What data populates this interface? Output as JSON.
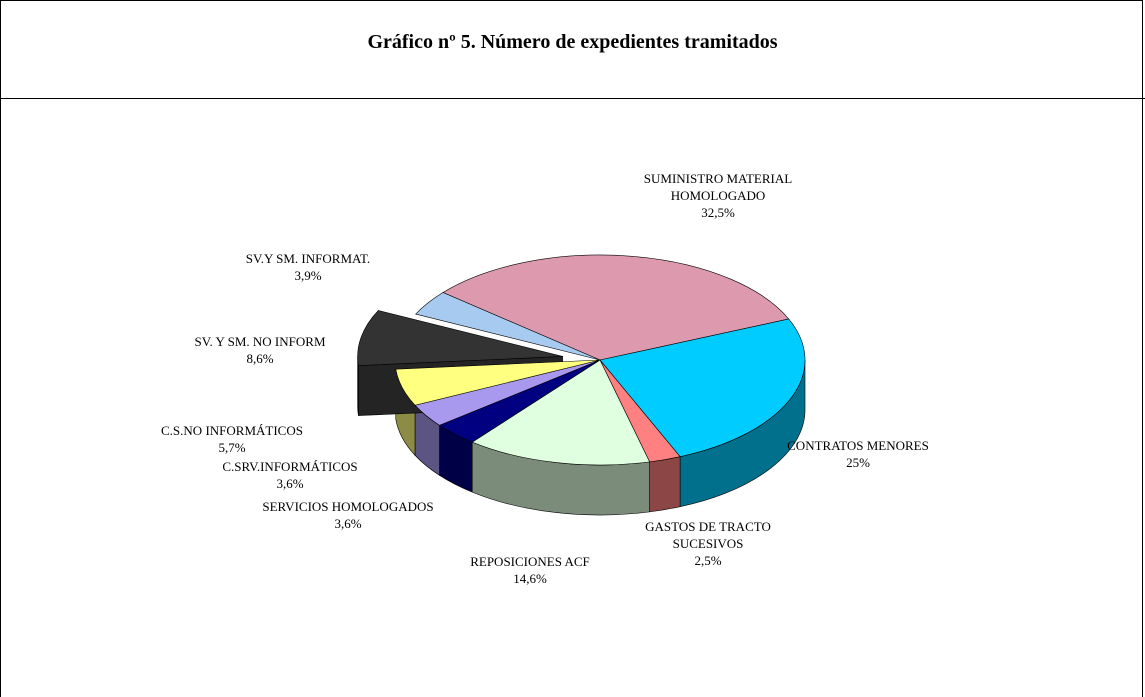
{
  "chart_data": {
    "type": "pie",
    "title": "Gráfico nº 5. Número de expedientes tramitados",
    "categories": [
      "SUMINISTRO MATERIAL HOMOLOGADO",
      "CONTRATOS MENORES",
      "GASTOS DE TRACTO SUCESIVOS",
      "REPOSICIONES ACF",
      "SERVICIOS HOMOLOGADOS",
      "C.SRV.INFORMÁTICOS",
      "C.S.NO INFORMÁTICOS",
      "SV. Y SM. NO INFORM",
      "SV.Y SM. INFORMAT."
    ],
    "values": [
      32.5,
      25,
      2.5,
      14.6,
      3.6,
      3.6,
      5.7,
      8.6,
      3.9
    ],
    "value_labels": [
      "32,5%",
      "25%",
      "2,5%",
      "14,6%",
      "3,6%",
      "3,6%",
      "5,7%",
      "8,6%",
      "3,9%"
    ],
    "colors": [
      "#dd9aae",
      "#00ccff",
      "#ff8080",
      "#e0ffe0",
      "#000080",
      "#a898ee",
      "#ffff80",
      "#333333",
      "#a6caf0"
    ]
  }
}
